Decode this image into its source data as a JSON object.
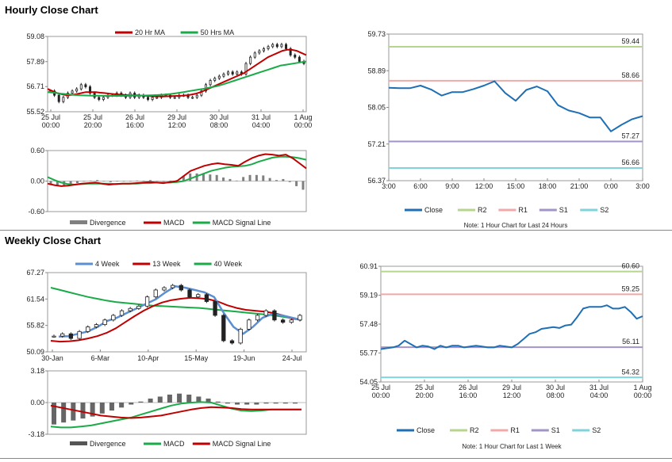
{
  "hourly": {
    "title": "Hourly Close Chart",
    "note": "Note: 1 Hour Chart for Last 24 Hours"
  },
  "weekly": {
    "title": "Weekly Close Chart",
    "note": "Note: 1 Hour Chart for Last 1 Week"
  },
  "colors": {
    "close": "#1f6fb4",
    "ma_red": "#c00000",
    "ma_green": "#1aab48",
    "r2": "#b7d58c",
    "r1": "#f0a8a8",
    "s1": "#a394c8",
    "s2": "#7fd3da",
    "divergence": "#808080",
    "w4": "#5b8fd0"
  },
  "chart_data": [
    {
      "id": "hourly_candles",
      "type": "line",
      "legend": [
        "20 Hr MA",
        "50 Hrs MA"
      ],
      "ylim": [
        55.52,
        59.08
      ],
      "yticks": [
        "59.08",
        "57.89",
        "56.71",
        "55.52"
      ],
      "xticks": [
        "25 Jul\n00:00",
        "25 Jul\n20:00",
        "26 Jul\n16:00",
        "29 Jul\n12:00",
        "30 Jul\n08:00",
        "31 Jul\n04:00",
        "1 Aug\n00:00"
      ],
      "series": [
        {
          "name": "Close",
          "values": [
            56.5,
            56.3,
            56.0,
            56.2,
            56.4,
            56.5,
            56.6,
            56.8,
            56.7,
            56.4,
            56.2,
            56.1,
            56.2,
            56.3,
            56.3,
            56.4,
            56.3,
            56.2,
            56.4,
            56.2,
            56.3,
            56.2,
            56.1,
            56.2,
            56.2,
            56.3,
            56.3,
            56.2,
            56.2,
            56.3,
            56.3,
            56.2,
            56.2,
            56.3,
            56.5,
            56.8,
            57.0,
            57.1,
            57.2,
            57.3,
            57.4,
            57.3,
            57.4,
            57.3,
            57.8,
            58.1,
            58.3,
            58.4,
            58.5,
            58.6,
            58.7,
            58.6,
            58.7,
            58.5,
            58.2,
            58.1,
            57.9,
            57.8
          ]
        },
        {
          "name": "20 Hr MA",
          "values": [
            56.6,
            56.5,
            56.4,
            56.35,
            56.3,
            56.32,
            56.35,
            56.4,
            56.45,
            56.45,
            56.45,
            56.42,
            56.4,
            56.37,
            56.35,
            56.33,
            56.32,
            56.3,
            56.3,
            56.3,
            56.28,
            56.27,
            56.25,
            56.25,
            56.24,
            56.25,
            56.26,
            56.27,
            56.28,
            56.3,
            56.33,
            56.38,
            56.45,
            56.55,
            56.65,
            56.75,
            56.85,
            56.95,
            57.05,
            57.15,
            57.25,
            57.35,
            57.5,
            57.65,
            57.8,
            57.95,
            58.1,
            58.2,
            58.3,
            58.4,
            58.45,
            58.45,
            58.4,
            58.3,
            58.2
          ]
        },
        {
          "name": "50 Hrs MA",
          "values": [
            56.45,
            56.42,
            56.38,
            56.35,
            56.32,
            56.3,
            56.29,
            56.28,
            56.28,
            56.27,
            56.27,
            56.27,
            56.27,
            56.28,
            56.28,
            56.29,
            56.3,
            56.31,
            56.33,
            56.36,
            56.4,
            56.45,
            56.5,
            56.55,
            56.6,
            56.66,
            56.72,
            56.8,
            56.9,
            57.0,
            57.1,
            57.2,
            57.3,
            57.4,
            57.5,
            57.6,
            57.7,
            57.75,
            57.8,
            57.85,
            57.9
          ]
        }
      ]
    },
    {
      "id": "hourly_macd",
      "type": "line",
      "legend": [
        "Divergence",
        "MACD",
        "MACD Signal Line"
      ],
      "ylim": [
        -0.6,
        0.6
      ],
      "yticks": [
        "0.60",
        "0.00",
        "-0.60"
      ],
      "series": [
        {
          "name": "MACD",
          "values": [
            -0.05,
            -0.08,
            -0.1,
            -0.09,
            -0.07,
            -0.05,
            -0.04,
            -0.03,
            -0.05,
            -0.07,
            -0.06,
            -0.05,
            -0.05,
            -0.04,
            -0.03,
            -0.02,
            -0.03,
            -0.04,
            -0.02,
            0.0,
            0.1,
            0.2,
            0.25,
            0.3,
            0.33,
            0.35,
            0.33,
            0.32,
            0.3,
            0.38,
            0.45,
            0.5,
            0.53,
            0.52,
            0.5,
            0.52,
            0.45,
            0.35,
            0.25
          ]
        },
        {
          "name": "MACD Signal Line",
          "values": [
            0.08,
            0.02,
            -0.03,
            -0.06,
            -0.07,
            -0.06,
            -0.05,
            -0.05,
            -0.05,
            -0.05,
            -0.06,
            -0.05,
            -0.05,
            -0.05,
            -0.04,
            -0.04,
            -0.03,
            -0.03,
            -0.03,
            -0.02,
            0.0,
            0.05,
            0.1,
            0.15,
            0.2,
            0.23,
            0.26,
            0.28,
            0.29,
            0.3,
            0.33,
            0.38,
            0.42,
            0.46,
            0.48,
            0.48,
            0.47,
            0.45,
            0.42
          ]
        },
        {
          "name": "Divergence",
          "values": [
            -0.08,
            -0.1,
            -0.1,
            -0.07,
            -0.04,
            -0.01,
            0.01,
            0.02,
            0.0,
            -0.02,
            0.0,
            0.0,
            0.0,
            0.01,
            0.01,
            0.02,
            0.0,
            -0.01,
            0.01,
            0.02,
            0.1,
            0.15,
            0.15,
            0.15,
            0.13,
            0.12,
            0.07,
            0.04,
            0.01,
            0.08,
            0.12,
            0.12,
            0.11,
            0.06,
            0.02,
            0.04,
            -0.02,
            -0.1,
            -0.17
          ]
        }
      ]
    },
    {
      "id": "hourly_levels",
      "type": "line",
      "legend": [
        "Close",
        "R2",
        "R1",
        "S1",
        "S2"
      ],
      "ylim": [
        56.37,
        59.73
      ],
      "yticks": [
        "59.73",
        "58.89",
        "58.05",
        "57.21",
        "56.37"
      ],
      "xticks": [
        "3:00",
        "6:00",
        "9:00",
        "12:00",
        "15:00",
        "18:00",
        "21:00",
        "0:00",
        "3:00"
      ],
      "levels": {
        "R2": 59.44,
        "R1": 58.66,
        "S1": 57.27,
        "S2": 56.66
      },
      "level_labels": {
        "R2": "59.44",
        "R1": "58.66",
        "S1": "57.27",
        "S2": "56.66"
      },
      "series": [
        {
          "name": "Close",
          "values": [
            58.5,
            58.49,
            58.49,
            58.55,
            58.46,
            58.32,
            58.4,
            58.4,
            58.47,
            58.55,
            58.65,
            58.38,
            58.2,
            58.45,
            58.53,
            58.42,
            58.1,
            57.98,
            57.92,
            57.82,
            57.82,
            57.5,
            57.65,
            57.78,
            57.85
          ]
        }
      ]
    },
    {
      "id": "weekly_candles",
      "type": "line",
      "legend": [
        "4 Week",
        "13 Week",
        "40 Week"
      ],
      "ylim": [
        50.09,
        67.27
      ],
      "yticks": [
        "67.27",
        "61.54",
        "55.82",
        "50.09"
      ],
      "xticks": [
        "30-Jan",
        "6-Mar",
        "10-Apr",
        "15-May",
        "19-Jun",
        "24-Jul"
      ],
      "series": [
        {
          "name": "Close",
          "values": [
            53.5,
            54.0,
            53.0,
            54.5,
            55.5,
            56.0,
            57.0,
            58.0,
            59.0,
            59.5,
            60.0,
            62.0,
            63.5,
            64.0,
            64.5,
            63.5,
            62.0,
            62.5,
            61.0,
            58.0,
            52.5,
            52.0,
            55.0,
            57.0,
            58.0,
            59.0,
            57.0,
            56.5,
            57.0,
            58.0
          ]
        },
        {
          "name": "4 Week",
          "values": [
            53.4,
            53.5,
            54.0,
            54.5,
            55.5,
            56.8,
            57.5,
            58.5,
            59.5,
            60.5,
            61.5,
            63.0,
            64.3,
            64.0,
            63.5,
            63.0,
            62.0,
            58.5,
            55.5,
            54.0,
            55.5,
            57.5,
            58.3,
            58.0,
            57.5,
            57.0
          ]
        },
        {
          "name": "13 Week",
          "values": [
            52.5,
            52.3,
            52.4,
            52.6,
            53.0,
            53.5,
            54.2,
            55.2,
            56.5,
            57.8,
            59.0,
            60.0,
            60.8,
            61.3,
            61.6,
            61.8,
            61.7,
            61.5,
            61.0,
            60.2,
            59.6,
            59.2,
            59.0,
            58.8,
            58.5,
            58.0,
            57.3,
            57.0
          ]
        },
        {
          "name": "40 Week",
          "values": [
            64.0,
            63.5,
            63.0,
            62.5,
            62.0,
            61.6,
            61.2,
            60.9,
            60.7,
            60.5,
            60.3,
            60.1,
            60.0,
            59.9,
            59.8,
            59.7,
            59.6,
            59.4,
            59.2,
            59.0,
            58.8,
            58.6,
            58.4,
            58.2,
            58.0,
            57.7,
            57.4,
            57.2
          ]
        }
      ]
    },
    {
      "id": "weekly_macd",
      "type": "line",
      "legend": [
        "Divergence",
        "MACD",
        "MACD Signal Line"
      ],
      "ylim": [
        -3.18,
        3.18
      ],
      "yticks": [
        "3.18",
        "0.00",
        "-3.18"
      ],
      "series": [
        {
          "name": "MACD",
          "values": [
            -2.4,
            -2.5,
            -2.5,
            -2.4,
            -2.3,
            -2.1,
            -1.9,
            -1.7,
            -1.5,
            -1.2,
            -0.9,
            -0.6,
            -0.3,
            -0.1,
            0.0,
            0.05,
            0.0,
            -0.3,
            -0.6,
            -0.8,
            -0.85,
            -0.8,
            -0.7,
            -0.7,
            -0.7,
            -0.7
          ]
        },
        {
          "name": "MACD Signal Line",
          "values": [
            -0.3,
            -0.5,
            -0.7,
            -0.9,
            -1.1,
            -1.3,
            -1.4,
            -1.5,
            -1.55,
            -1.5,
            -1.4,
            -1.3,
            -1.1,
            -0.9,
            -0.7,
            -0.55,
            -0.45,
            -0.5,
            -0.55,
            -0.65,
            -0.7,
            -0.7,
            -0.7,
            -0.7,
            -0.7,
            -0.7
          ]
        },
        {
          "name": "Divergence",
          "values": [
            -2.2,
            -2.0,
            -1.8,
            -1.6,
            -1.4,
            -1.1,
            -0.8,
            -0.5,
            -0.2,
            0.1,
            0.4,
            0.6,
            0.8,
            0.9,
            0.8,
            0.6,
            0.4,
            0.1,
            -0.1,
            -0.2,
            -0.2,
            -0.2,
            -0.1,
            -0.1,
            -0.1,
            -0.1
          ]
        }
      ]
    },
    {
      "id": "weekly_levels",
      "type": "line",
      "legend": [
        "Close",
        "R2",
        "R1",
        "S1",
        "S2"
      ],
      "ylim": [
        54.05,
        60.91
      ],
      "yticks": [
        "60.91",
        "59.19",
        "57.48",
        "55.77",
        "54.05"
      ],
      "xticks": [
        "25 Jul\n00:00",
        "25 Jul\n20:00",
        "26 Jul\n16:00",
        "29 Jul\n12:00",
        "30 Jul\n08:00",
        "31 Jul\n04:00",
        "1 Aug\n00:00"
      ],
      "levels": {
        "R2": 60.6,
        "R1": 59.25,
        "S1": 56.11,
        "S2": 54.32
      },
      "level_labels": {
        "R2": "60.60",
        "R1": "59.25",
        "S1": "56.11",
        "S2": "54.32"
      },
      "series": [
        {
          "name": "Close",
          "values": [
            56.0,
            56.05,
            56.1,
            56.2,
            56.5,
            56.3,
            56.1,
            56.2,
            56.15,
            56.0,
            56.2,
            56.1,
            56.2,
            56.2,
            56.1,
            56.15,
            56.2,
            56.15,
            56.1,
            56.1,
            56.2,
            56.15,
            56.1,
            56.3,
            56.6,
            56.9,
            57.0,
            57.2,
            57.25,
            57.3,
            57.25,
            57.4,
            57.45,
            57.9,
            58.4,
            58.5,
            58.5,
            58.5,
            58.6,
            58.4,
            58.4,
            58.5,
            58.2,
            57.8,
            57.95
          ]
        }
      ]
    }
  ]
}
